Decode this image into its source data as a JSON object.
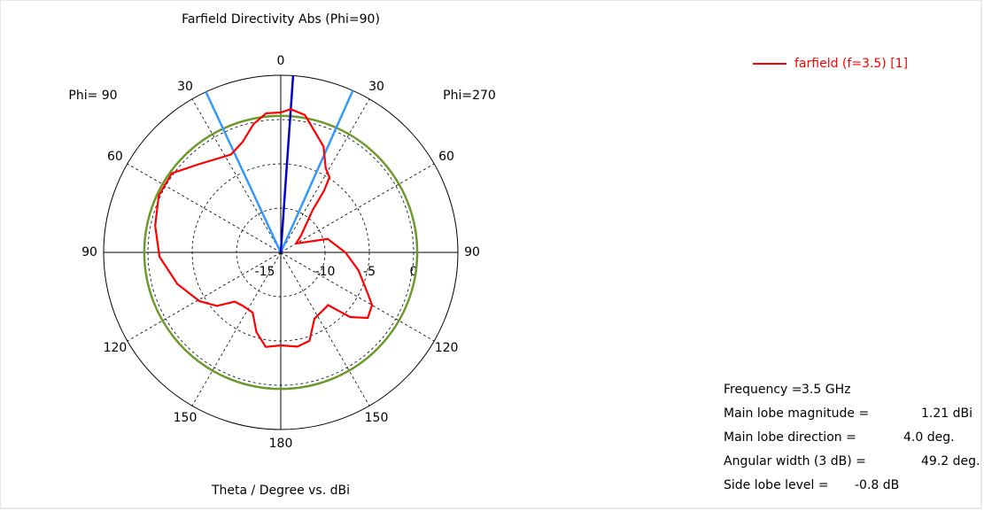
{
  "chart_data": {
    "type": "polar",
    "title": "Farfield Directivity Abs (Phi=90)",
    "left_label": "Phi= 90",
    "right_label": "Phi=270",
    "xlabel": "Theta / Degree vs. dBi",
    "rlim": [
      -15,
      5
    ],
    "rticks": [
      -15,
      -10,
      -5,
      0
    ],
    "angle_ticks": [
      0,
      {
        "value": 30,
        "label": "30"
      },
      {
        "value": 60,
        "label": "60"
      },
      {
        "value": 90,
        "label": "90"
      },
      {
        "value": 120,
        "label": "120"
      },
      {
        "value": 150,
        "label": "150"
      },
      180,
      {
        "value": 210,
        "label": "150"
      },
      {
        "value": 240,
        "label": "120"
      },
      {
        "value": 270,
        "label": "90"
      },
      {
        "value": 300,
        "label": "60"
      },
      {
        "value": 330,
        "label": "30"
      }
    ],
    "series": [
      {
        "name": "farfield (f=3.5) [1]",
        "color": "#ff0000",
        "x": [
          0,
          4,
          10,
          22,
          28,
          33,
          35,
          37,
          50,
          60,
          74,
          90,
          103,
          115,
          120,
          127,
          133,
          138,
          153,
          162,
          170,
          180,
          189,
          197,
          205,
          215,
          223,
          230,
          239,
          253,
          268,
          282,
          295,
          306,
          317,
          333,
          341,
          348,
          354
        ],
        "values": [
          0.8,
          1.21,
          0.75,
          -2.1,
          -4.2,
          -4.9,
          -6.5,
          -9,
          -12,
          -13,
          -9.5,
          -7.7,
          -6,
          -4.2,
          -3.1,
          -2.7,
          -4.3,
          -7,
          -6.6,
          -4.5,
          -4.2,
          -4.5,
          -4.2,
          -5.6,
          -7.5,
          -7.6,
          -7.4,
          -5.6,
          -4.3,
          -2.8,
          -1.3,
          -0.5,
          0.2,
          0.2,
          -1.4,
          -2.6,
          -1.8,
          -0.2,
          0.8
        ]
      }
    ],
    "main_lobe_direction": 4,
    "main_lobe_color": "#0000cc",
    "beamwidth_directions": [
      335,
      24
    ],
    "beamwidth_color": "#3399ff",
    "sidelobe_circle": 0.41,
    "sidelobe_color": "#6b9a2c",
    "info": [
      {
        "label": "Frequency =",
        "value": "3.5 GHz"
      },
      {
        "label": "Main lobe magnitude =",
        "value": "1.21 dBi"
      },
      {
        "label": "Main lobe direction =",
        "value": "4.0 deg."
      },
      {
        "label": "Angular width (3 dB) =",
        "value": "49.2 deg."
      },
      {
        "label": "Side lobe level =",
        "value": "-0.8 dB"
      }
    ]
  }
}
